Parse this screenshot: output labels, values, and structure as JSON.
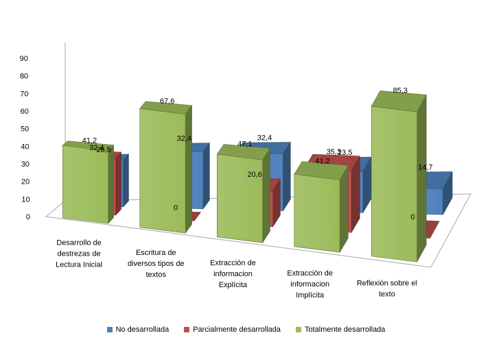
{
  "chart_data": {
    "type": "bar",
    "categories": [
      "Desarrollo de destrezas de Lectura Inicial",
      "Escritura de diversos tipos de textos",
      "Extracción de informacion Explícita",
      "Extracción de informacion Implícita",
      "Reflexión sobre el texto"
    ],
    "category_lines": [
      [
        "Desarrollo de",
        "destrezas de",
        "Lectura Inicial"
      ],
      [
        "Escritura de",
        "diversos tipos de",
        "textos"
      ],
      [
        "Extracción de",
        "informacion",
        "Explícita"
      ],
      [
        "Extracción de",
        "informacion",
        "Implícita"
      ],
      [
        "Reflexión sobre el",
        "texto"
      ]
    ],
    "series": [
      {
        "name": "No desarrollada",
        "values": [
          26.5,
          32.4,
          32.4,
          23.5,
          14.7
        ],
        "labels": [
          "26,5",
          "32,4",
          "32,4",
          "23,5",
          "14,7"
        ],
        "color": "#4F81BD"
      },
      {
        "name": "Parcialmente desarrollada",
        "values": [
          32.4,
          0,
          20.6,
          35.3,
          0
        ],
        "labels": [
          "32,4",
          "0",
          "20,6",
          "35,3",
          "0"
        ],
        "color": "#C0504D"
      },
      {
        "name": "Totalmente desarrollada",
        "values": [
          41.2,
          67.6,
          47.1,
          41.2,
          85.3
        ],
        "labels": [
          "41,2",
          "67,6",
          "47,1",
          "41,2",
          "85,3"
        ],
        "color": "#9BBB59"
      }
    ],
    "yticks": [
      "0",
      "10",
      "20",
      "30",
      "40",
      "50",
      "60",
      "70",
      "80",
      "90"
    ],
    "ylim": [
      0,
      90
    ],
    "legend_position": "bottom",
    "grid": false,
    "style": "3d-clustered-bar"
  }
}
